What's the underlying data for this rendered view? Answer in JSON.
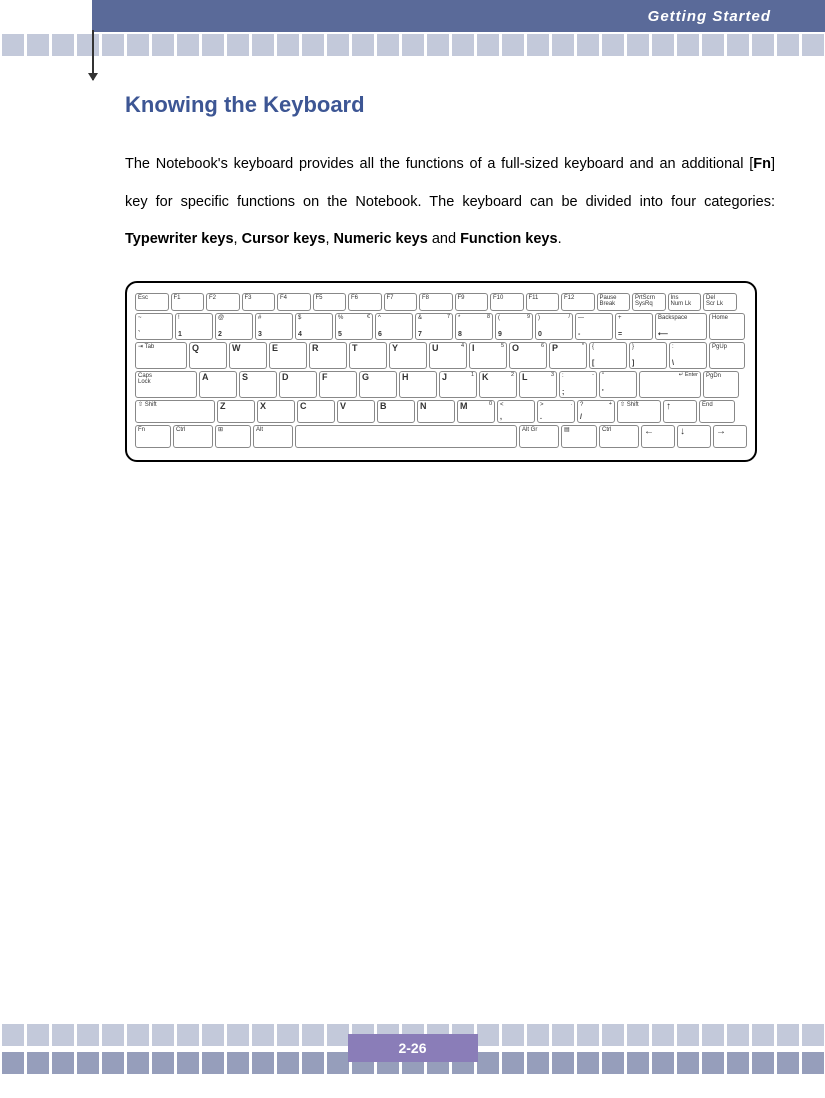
{
  "header": {
    "section_label": "Getting Started"
  },
  "page": {
    "title": "Knowing the Keyboard",
    "body_parts": {
      "p1a": "The Notebook's keyboard provides all the functions of a full-sized keyboard and an additional [",
      "p1_bold1": "Fn",
      "p1b": "] key for specific functions on the Notebook.  The keyboard can be divided into four categories: ",
      "p1_bold2": "Typewriter keys",
      "p1c": ", ",
      "p1_bold3": "Cursor keys",
      "p1d": ", ",
      "p1_bold4": "Numeric keys",
      "p1e": " and ",
      "p1_bold5": "Function keys",
      "p1f": "."
    },
    "number": "2-26"
  },
  "colors": {
    "header_bg": "#5a6a99",
    "section_title": "#3d5694",
    "square_light": "#c3c9da",
    "square_dark": "#969ebb",
    "page_num_bg": "#8a7db8"
  },
  "keyboard": {
    "row_fn": [
      "Esc",
      "F1",
      "F2",
      "F3",
      "F4",
      "F5",
      "F6",
      "F7",
      "F8",
      "F9",
      "F10",
      "F11",
      "F12",
      "Pause Break",
      "PrtScrn SysRq",
      "Ins Num Lk",
      "Del Scr Lk"
    ],
    "row_num": [
      {
        "t": "~",
        "b": "`"
      },
      {
        "t": "!",
        "b": "1"
      },
      {
        "t": "@",
        "b": "2"
      },
      {
        "t": "#",
        "b": "3"
      },
      {
        "t": "$",
        "b": "4"
      },
      {
        "t": "%",
        "b": "5",
        "r": "€"
      },
      {
        "t": "^",
        "b": "6"
      },
      {
        "t": "&",
        "b": "7",
        "r": "7"
      },
      {
        "t": "*",
        "b": "8",
        "r": "8"
      },
      {
        "t": "(",
        "b": "9",
        "r": "9"
      },
      {
        "t": ")",
        "b": "0",
        "r": "/"
      },
      {
        "t": "—",
        "b": "-"
      },
      {
        "t": "+",
        "b": "="
      },
      {
        "label": "Backspace"
      },
      {
        "label": "Home"
      }
    ],
    "row_q": [
      {
        "label": "Tab"
      },
      "Q",
      "W",
      "E",
      "R",
      "T",
      "Y",
      {
        "l": "U",
        "r": "4"
      },
      {
        "l": "I",
        "r": "5"
      },
      {
        "l": "O",
        "r": "6"
      },
      {
        "l": "P",
        "r": "*"
      },
      {
        "t": "{",
        "b": "["
      },
      {
        "t": "}",
        "b": "]"
      },
      {
        "t": ":",
        "b": "\\"
      },
      {
        "label": "PgUp"
      }
    ],
    "row_a": [
      {
        "label": "Caps Lock"
      },
      "A",
      "S",
      "D",
      "F",
      "G",
      "H",
      {
        "l": "J",
        "r": "1"
      },
      {
        "l": "K",
        "r": "2"
      },
      {
        "l": "L",
        "r": "3"
      },
      {
        "t": ":",
        "b": ";",
        "r": "-"
      },
      {
        "t": "\"",
        "b": "'"
      },
      {
        "label": "↵ Enter"
      },
      {
        "label": "PgDn"
      }
    ],
    "row_z": [
      {
        "label": "⇧ Shift"
      },
      "Z",
      "X",
      "C",
      "V",
      "B",
      "N",
      {
        "l": "M",
        "r": "0"
      },
      {
        "t": "<",
        "b": ","
      },
      {
        "t": ">",
        "b": ".",
        "r": "."
      },
      {
        "t": "?",
        "b": "/",
        "r": "+"
      },
      {
        "label": "⇧ Shift"
      },
      {
        "label": "↑"
      },
      {
        "label": "End"
      }
    ],
    "row_sp": [
      "Fn",
      "Ctrl",
      "⊞",
      "Alt",
      "",
      "Alt Gr",
      "▤",
      "Ctrl",
      "←",
      "↓",
      "→"
    ]
  }
}
